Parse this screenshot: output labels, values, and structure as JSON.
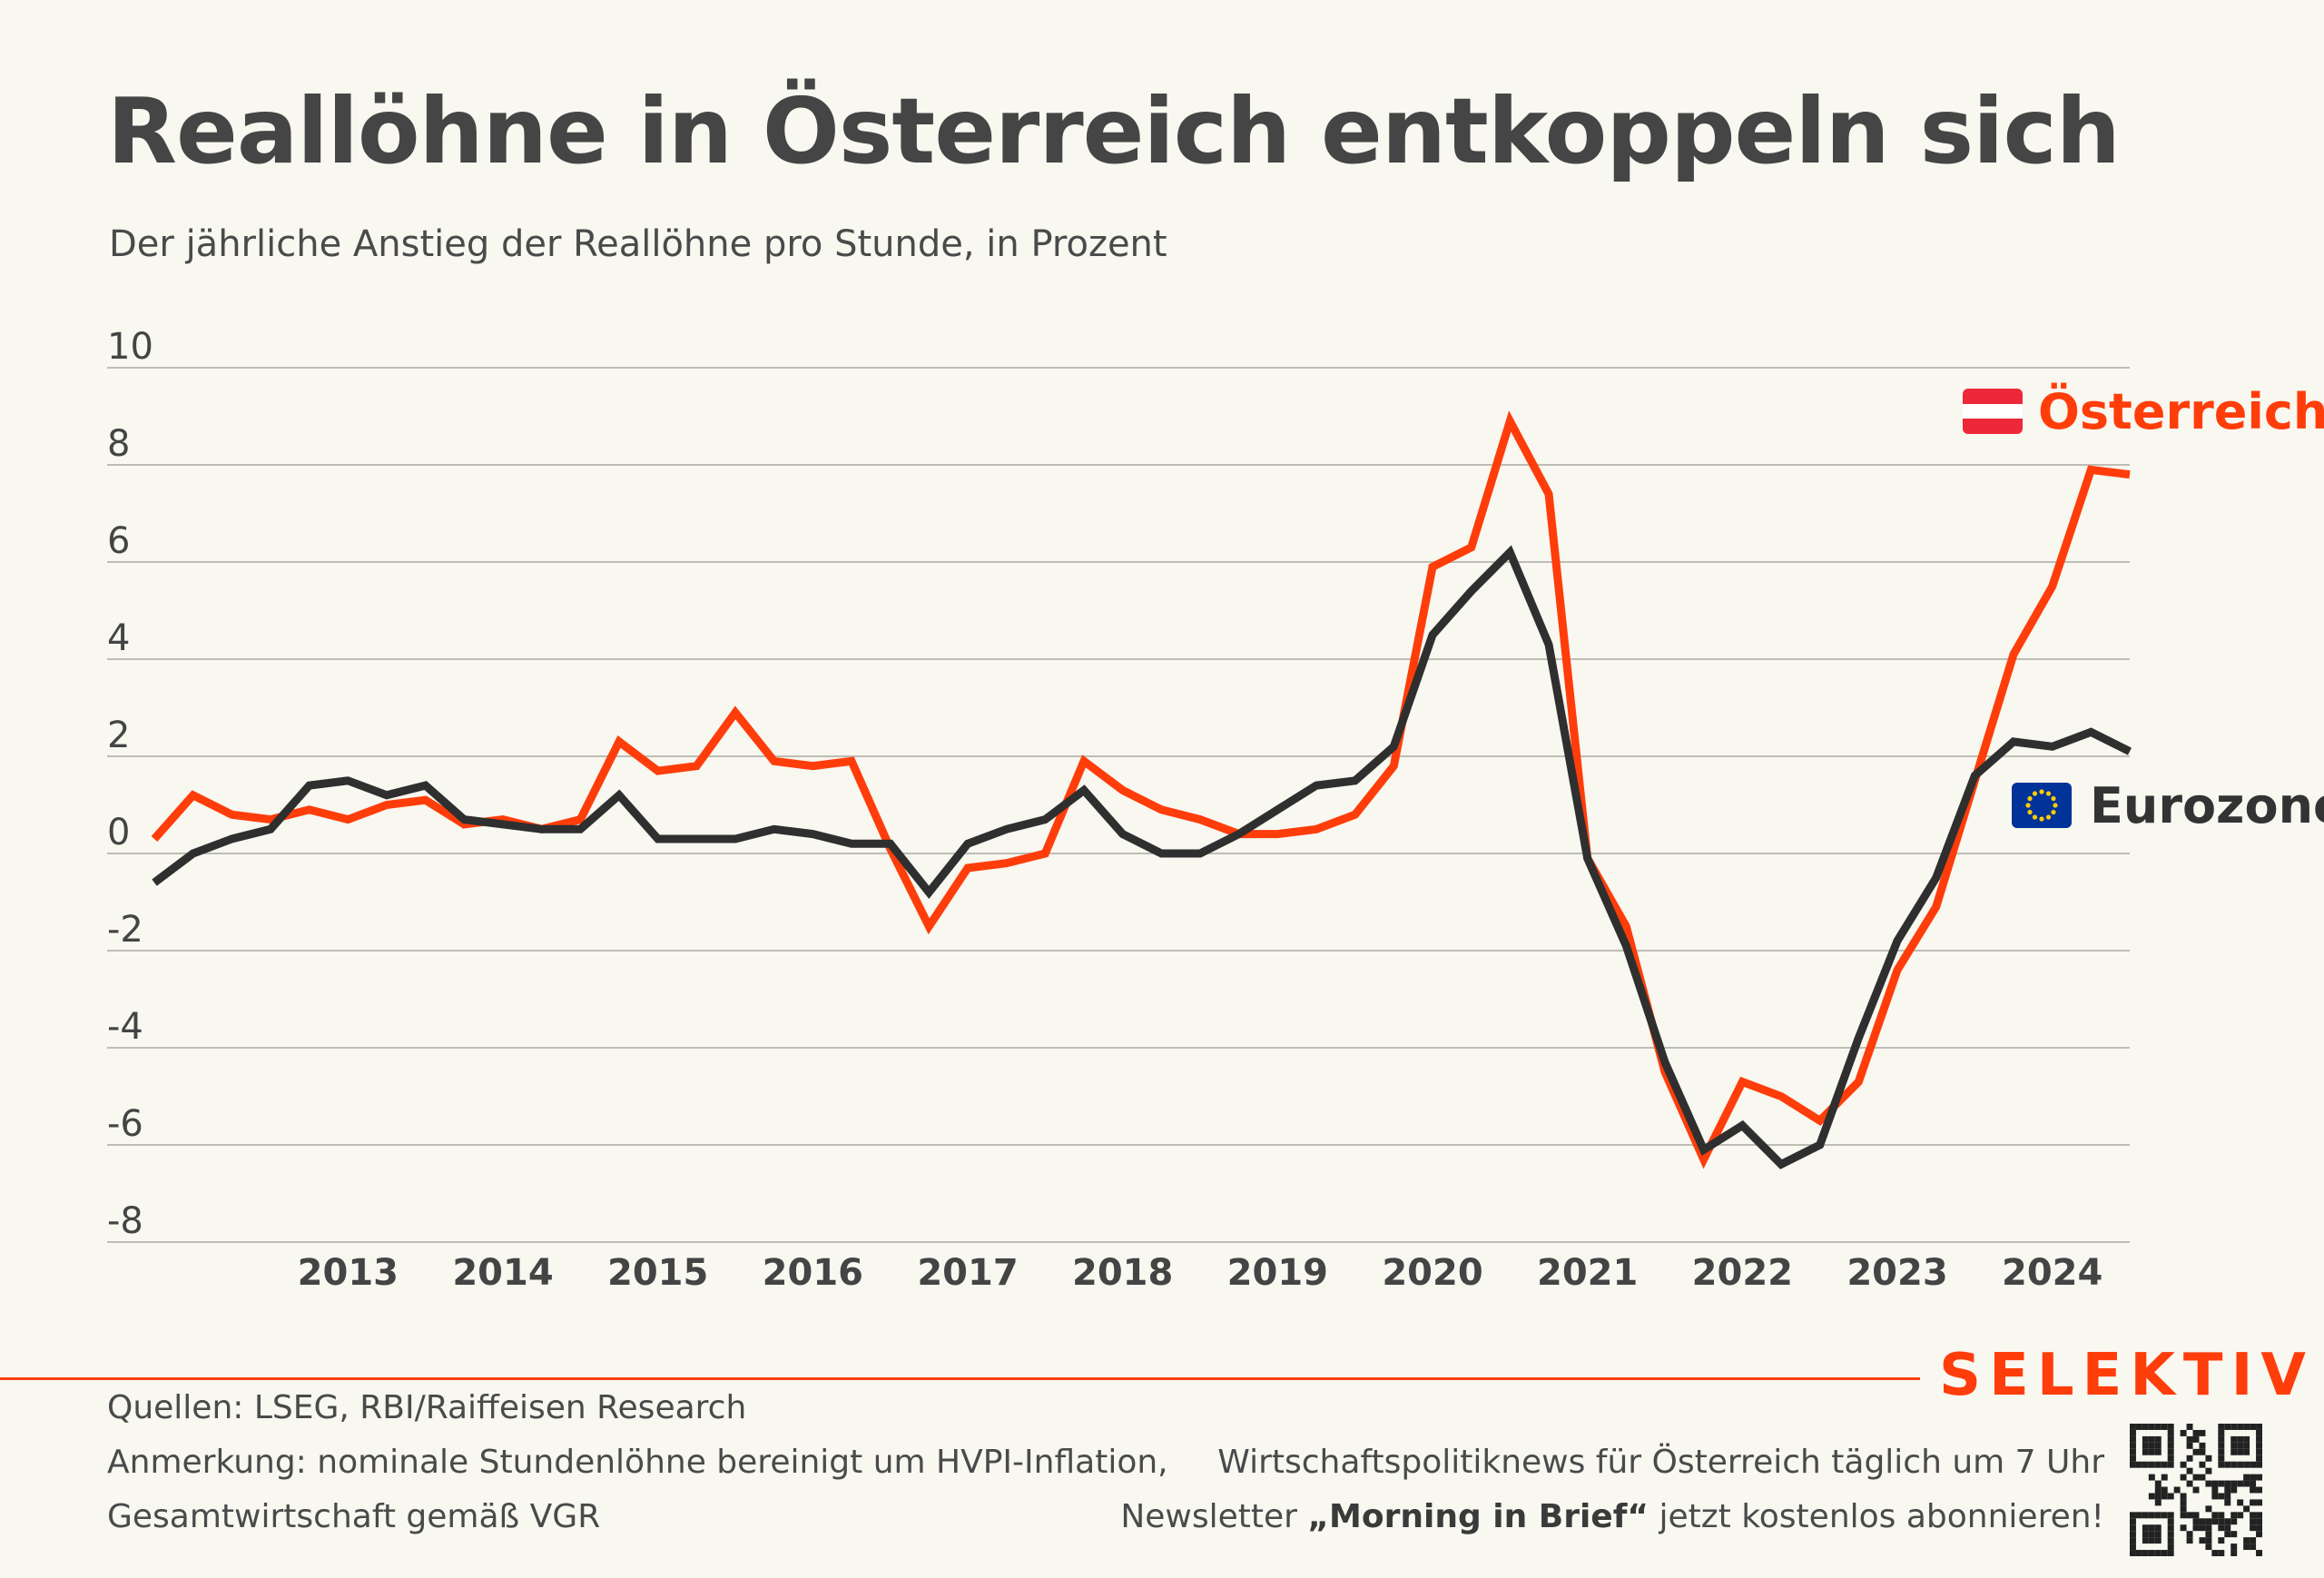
{
  "header": {
    "title": "Reallöhne in Österreich entkoppeln sich",
    "subtitle": "Der jährliche Anstieg der Reallöhne pro Stunde, in Prozent"
  },
  "chart_data": {
    "type": "line",
    "title": "Reallöhne in Österreich entkoppeln sich",
    "subtitle": "Der jährliche Anstieg der Reallöhne pro Stunde, in Prozent",
    "ylim": [
      -8,
      10
    ],
    "yticks": [
      10,
      8,
      6,
      4,
      2,
      0,
      -2,
      -4,
      -6,
      -8
    ],
    "ytick_labels": [
      "10",
      "8",
      "6",
      "4",
      "2",
      "0",
      "-2",
      "-4",
      "-6",
      "-8"
    ],
    "xticks": [
      "2013",
      "2014",
      "2015",
      "2016",
      "2017",
      "2018",
      "2019",
      "2020",
      "2021",
      "2022",
      "2023",
      "2024"
    ],
    "x_start": 2012.25,
    "x_step": 0.25,
    "grid": true,
    "series": [
      {
        "name": "Österreich",
        "color": "#ff3d0a",
        "flag": "austria-flag",
        "values": [
          0.3,
          1.2,
          0.8,
          0.7,
          0.9,
          0.7,
          1.0,
          1.1,
          0.6,
          0.7,
          0.5,
          0.7,
          2.3,
          1.7,
          1.8,
          2.9,
          1.9,
          1.8,
          1.9,
          0.1,
          -1.5,
          -0.3,
          -0.2,
          0.0,
          1.9,
          1.3,
          0.9,
          0.7,
          0.4,
          0.4,
          0.5,
          0.8,
          1.8,
          5.9,
          6.3,
          8.9,
          7.4,
          -0.1,
          -1.5,
          -4.5,
          -6.3,
          -4.7,
          -5.0,
          -5.5,
          -4.7,
          -2.4,
          -1.1,
          1.5,
          4.1,
          5.5,
          7.9,
          7.8
        ]
      },
      {
        "name": "Eurozone",
        "color": "#2f2f2f",
        "flag": "eu-flag",
        "values": [
          -0.6,
          0.0,
          0.3,
          0.5,
          1.4,
          1.5,
          1.2,
          1.4,
          0.7,
          0.6,
          0.5,
          0.5,
          1.2,
          0.3,
          0.3,
          0.3,
          0.5,
          0.4,
          0.2,
          0.2,
          -0.8,
          0.2,
          0.5,
          0.7,
          1.3,
          0.4,
          0.0,
          0.0,
          0.4,
          0.9,
          1.4,
          1.5,
          2.2,
          4.5,
          5.4,
          6.2,
          4.3,
          -0.1,
          -1.9,
          -4.3,
          -6.1,
          -5.6,
          -6.4,
          -6.0,
          -3.8,
          -1.8,
          -0.5,
          1.6,
          2.3,
          2.2,
          2.5,
          2.1
        ]
      }
    ],
    "legend": "inline labels at line ends"
  },
  "footer": {
    "brand": "SELEKTIV",
    "source": "Quellen: LSEG, RBI/Raiffeisen Research",
    "note_line1": "Anmerkung: nominale Stundenlöhne bereinigt um HVPI-Inflation,",
    "note_line2": "Gesamtwirtschaft gemäß VGR",
    "promo_line1": "Wirtschaftspolitiknews für Österreich täglich um 7 Uhr",
    "promo_line2_prefix": "Newsletter ",
    "promo_line2_bold": "„Morning in Brief“",
    "promo_line2_suffix": " jetzt kostenlos abonnieren!",
    "qr_icon": "qr-code-icon"
  }
}
